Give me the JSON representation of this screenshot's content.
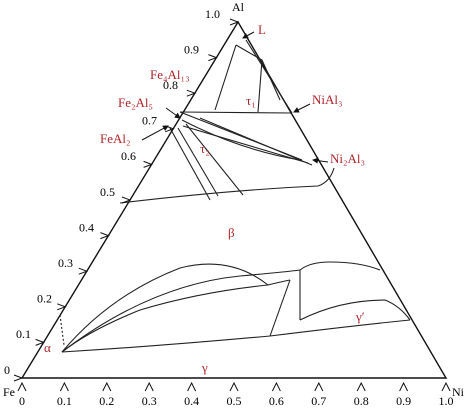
{
  "vertices": {
    "top": "Al",
    "left": "Fe",
    "right": "Ni"
  },
  "left_axis_ticks": [
    "0",
    "0.1",
    "0.2",
    "0.3",
    "0.4",
    "0.5",
    "0.6",
    "0.7",
    "0.8",
    "0.9",
    "1.0"
  ],
  "bottom_axis_ticks": [
    "0",
    "0.1",
    "0.2",
    "0.3",
    "0.4",
    "0.5",
    "0.6",
    "0.7",
    "0.8",
    "0.9",
    "1.0"
  ],
  "phases": [
    "L",
    "Fe₄Al₁₃",
    "Fe₂Al₅",
    "FeAl₂",
    "NiAl₃",
    "Ni₂Al₃",
    "τ₁",
    "τ₂",
    "β",
    "γ′",
    "γ",
    "α"
  ]
}
